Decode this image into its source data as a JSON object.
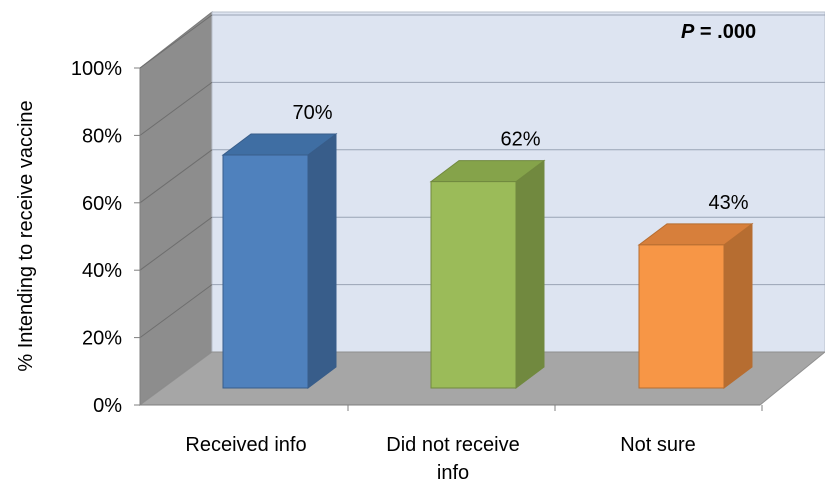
{
  "chart_data": {
    "type": "bar",
    "categories": [
      "Received info",
      "Did not receive info",
      "Not sure"
    ],
    "category_lines": [
      [
        "Received info"
      ],
      [
        "Did not receive",
        "info"
      ],
      [
        "Not sure"
      ]
    ],
    "values": [
      70,
      62,
      43
    ],
    "data_labels": [
      "70%",
      "62%",
      "43%"
    ],
    "ylabel": "% Intending to receive vaccine",
    "ylim": [
      0,
      100
    ],
    "yticks": [
      0,
      20,
      40,
      60,
      80,
      100
    ],
    "ytick_labels": [
      "0%",
      "20%",
      "40%",
      "60%",
      "80%",
      "100%"
    ],
    "annotation": {
      "italic": "P",
      "rest": " = .000"
    },
    "grid": true,
    "legend": "none",
    "style": "3d-column",
    "colors": {
      "front": [
        "#4f81bd",
        "#9bbb59",
        "#f79646"
      ],
      "side": [
        "#385d8a",
        "#71893f",
        "#b66d31"
      ],
      "top": [
        "#3f6ea3",
        "#85a34a",
        "#d77f3b"
      ],
      "back_wall": "#dde4f1",
      "side_wall": "#8d8d8d",
      "floor": "#a6a6a6",
      "gridline": "#9aa3b5"
    }
  }
}
